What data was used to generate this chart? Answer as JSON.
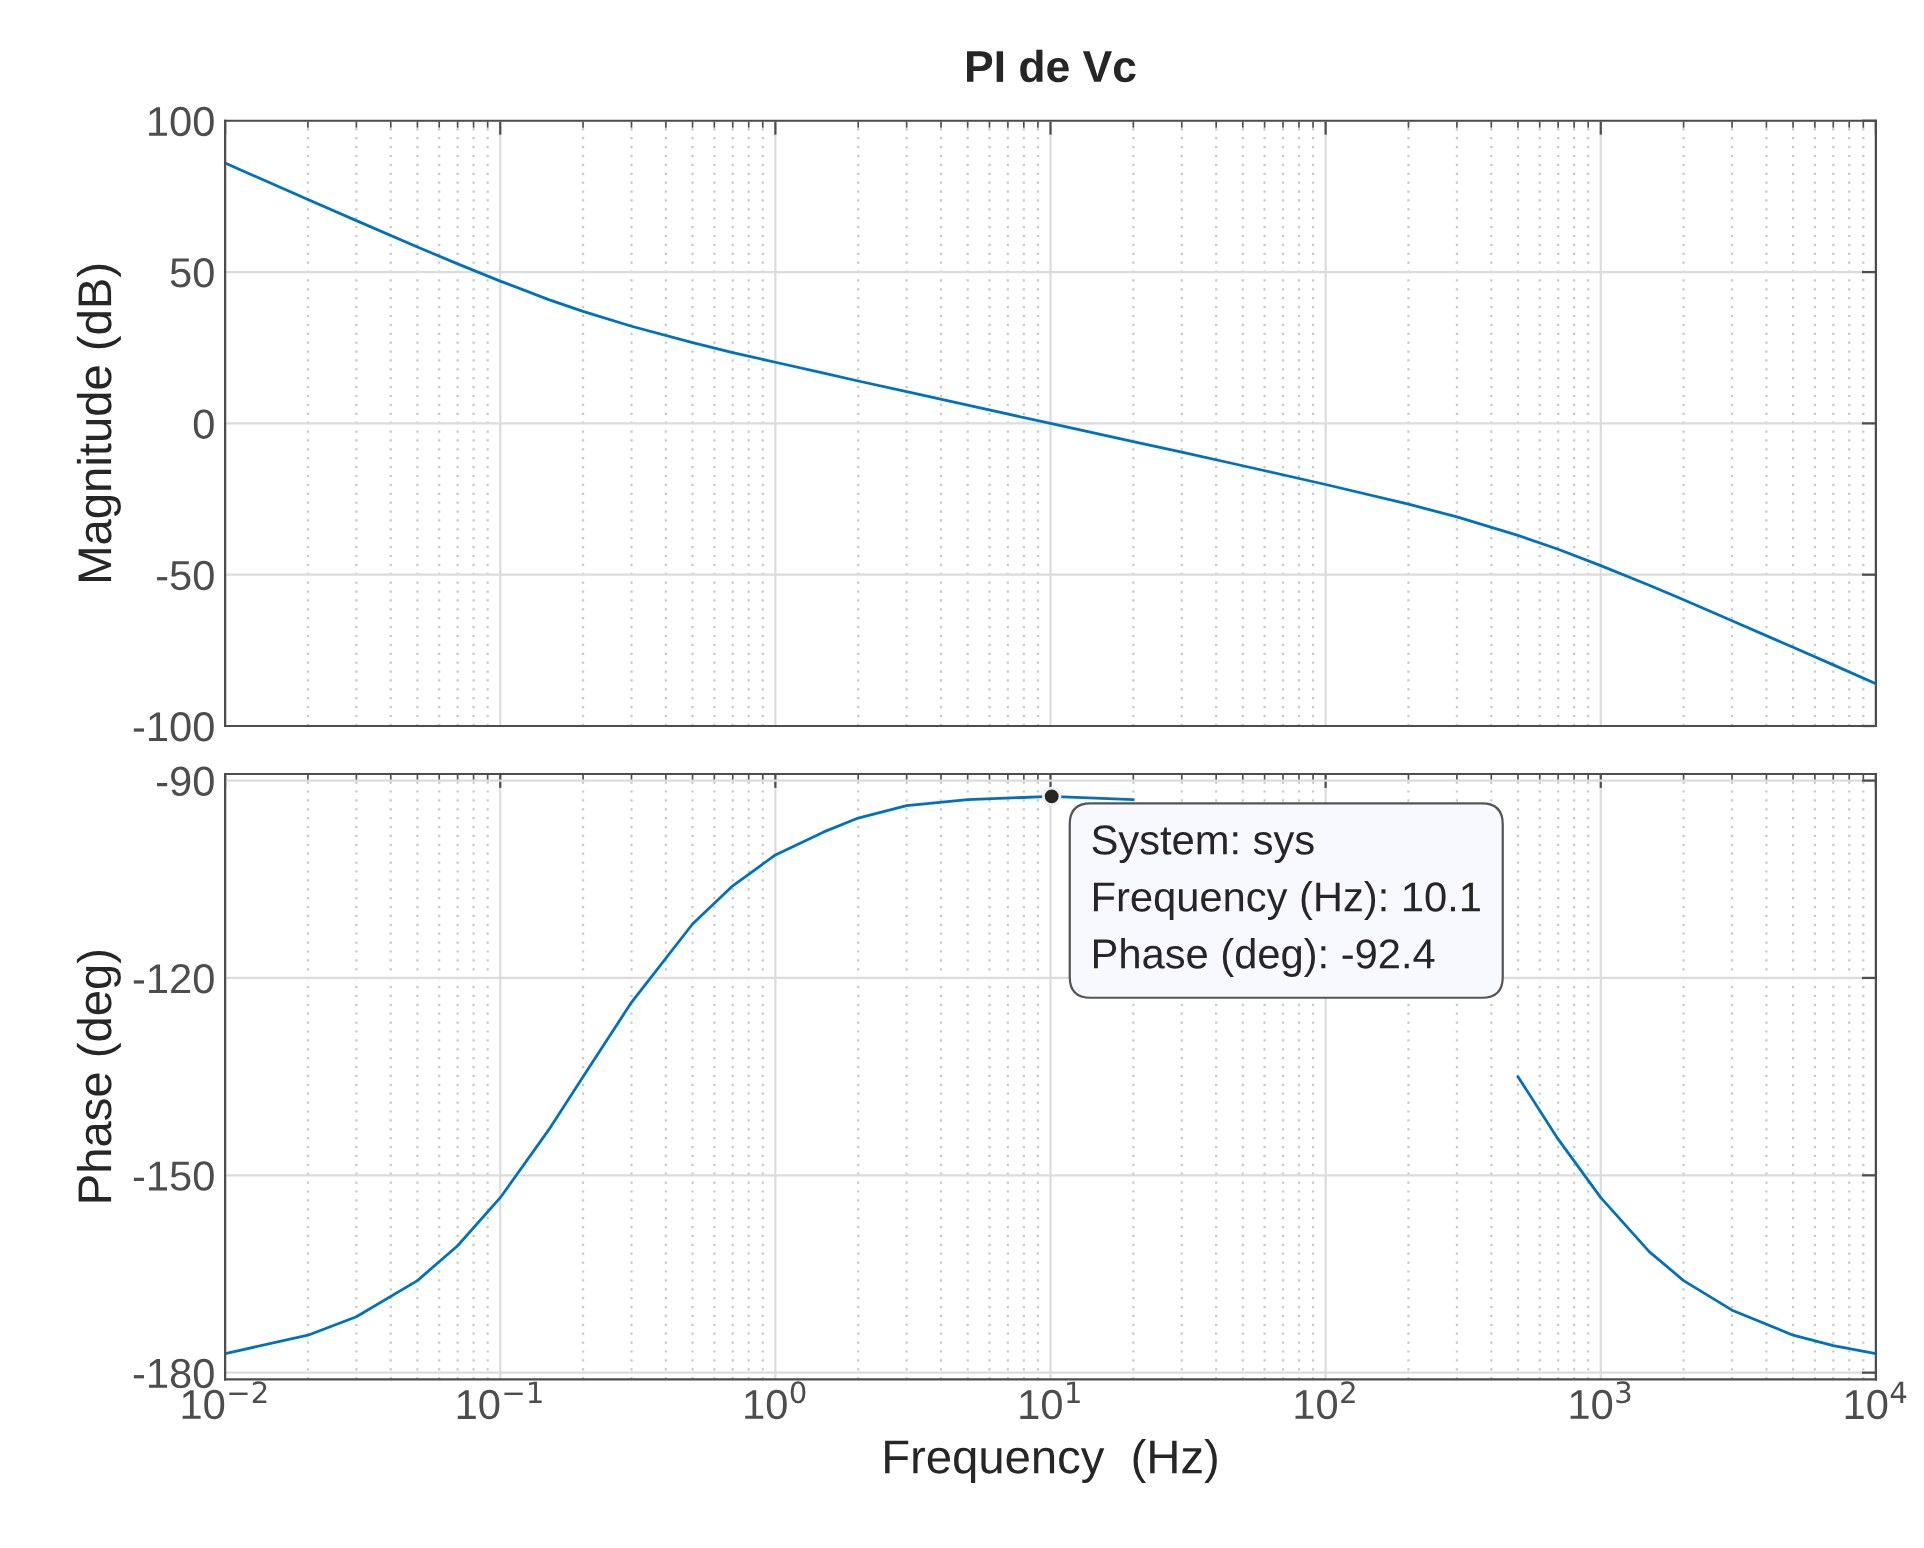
{
  "chart_data": [
    {
      "type": "line",
      "title": "PI de Vc",
      "ylabel": "Magnitude (dB)",
      "log": "x",
      "grid": true,
      "tick_labels": "y",
      "x": [
        0.01,
        0.02,
        0.03,
        0.05,
        0.07,
        0.1,
        0.15,
        0.2,
        0.3,
        0.5,
        0.7,
        1,
        1.5,
        2,
        3,
        5,
        10,
        20,
        30,
        50,
        100,
        200,
        300,
        500,
        700,
        1000,
        1500,
        2000,
        3000,
        5000,
        7000,
        10000
      ],
      "series": [
        {
          "color": "#0072bd",
          "values": [
            86.0,
            74.0,
            67.0,
            58.3,
            52.7,
            47.0,
            40.9,
            37.0,
            32.1,
            26.7,
            23.4,
            20.2,
            16.6,
            14.0,
            10.5,
            6.0,
            0,
            -6.0,
            -9.5,
            -14.0,
            -20.2,
            -26.7,
            -30.9,
            -37.0,
            -41.6,
            -47.0,
            -53.5,
            -58.3,
            -65.2,
            -74.0,
            -79.8,
            -86.0
          ]
        }
      ],
      "xlim": [
        0.01,
        10000
      ],
      "xticks": [
        {
          "value": 0.01,
          "label": null
        },
        {
          "value": 0.1,
          "label": null
        },
        {
          "value": 1,
          "label": null
        },
        {
          "value": 10,
          "label": null
        },
        {
          "value": 100,
          "label": null
        },
        {
          "value": 1000,
          "label": null
        },
        {
          "value": 10000,
          "label": null
        }
      ],
      "ylim": [
        -100,
        100
      ],
      "yticks": [
        -100,
        -50,
        0,
        50,
        100
      ]
    },
    {
      "type": "line",
      "xlabel": "Frequency  (Hz)",
      "ylabel": "Phase (deg)",
      "log": "x",
      "grid": true,
      "x": [
        0.01,
        0.02,
        0.03,
        0.05,
        0.07,
        0.1,
        0.15,
        0.2,
        0.3,
        0.5,
        0.7,
        1,
        1.5,
        2,
        3,
        5,
        10,
        20,
        30,
        50,
        100,
        200,
        300,
        500,
        700,
        1000,
        1500,
        2000,
        3000,
        5000,
        7000,
        10000
      ],
      "series": [
        {
          "color": "#0072bd",
          "values": [
            -177.1,
            -174.3,
            -171.5,
            -166.0,
            -160.7,
            -153.4,
            -143.1,
            -135.0,
            -123.7,
            -111.8,
            -106.0,
            -101.3,
            -97.8,
            -95.7,
            -93.8,
            -92.9,
            -92.4,
            -92.9,
            null,
            null,
            null,
            null,
            null,
            -135.0,
            -144.5,
            -153.4,
            -161.6,
            -166.0,
            -170.5,
            -174.3,
            -175.9,
            -177.1
          ]
        }
      ],
      "xlim": [
        0.01,
        10000
      ],
      "xticks": [
        {
          "value": 0.01,
          "label": "10$^{−2}$"
        },
        {
          "value": 0.1,
          "label": "10$^{−1}$"
        },
        {
          "value": 1,
          "label": "10$^{0}$"
        },
        {
          "value": 10,
          "label": "10$^{1}$"
        },
        {
          "value": 100,
          "label": "10$^{2}$"
        },
        {
          "value": 1000,
          "label": "10$^{3}$"
        },
        {
          "value": 10000,
          "label": "10$^{4}$"
        }
      ],
      "ylim": [
        -181,
        -89
      ],
      "yticks": [
        -180,
        -150,
        -120,
        -90
      ],
      "annotations": [
        {
          "text": "System: sys\nFrequency (Hz): 10.1\nPhase (deg): -92.4",
          "x": 10.1,
          "y": -92.4
        }
      ]
    }
  ]
}
